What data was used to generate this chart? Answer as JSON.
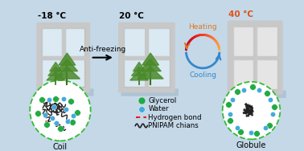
{
  "bg_color": "#c4d8e8",
  "title_neg18": "-18 °C",
  "title_20": "20 °C",
  "title_40": "40 °C",
  "title_40_color": "#e05010",
  "arrow_antifreezing": "Anti-freezing",
  "heating_label": "Heating",
  "cooling_label": "Cooling",
  "coil_label": "Coil",
  "globule_label": "Globule",
  "legend_glycerol": "Glycerol",
  "legend_water": "Water",
  "legend_hbond": "Hydrogen bond",
  "legend_pnipam": "PNIPAM chians",
  "glycerol_color": "#22aa44",
  "water_color": "#44aadd",
  "hbond_color": "#dd2222",
  "pnipam_color": "#222222",
  "frame_color": "#c8c8c8",
  "frame_inner": "#b8b8b8",
  "glass_color_clear": "#ddeef8",
  "glass_color_green": "#b8d8a0",
  "glass_color_white": "#f0f0f0",
  "dashed_circle_color": "#33bb33",
  "heating_color": "#e07820",
  "cooling_color": "#3388cc",
  "shadow_color": "#a0b8c8"
}
